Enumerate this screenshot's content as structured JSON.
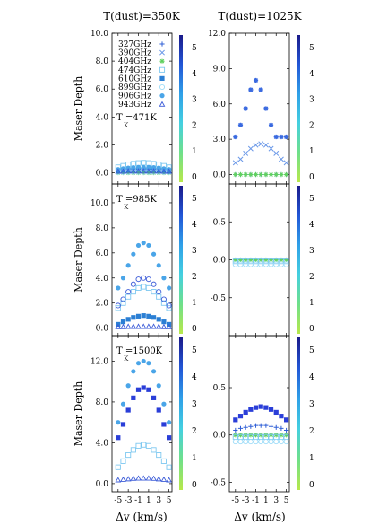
{
  "column_titles": [
    "T(dust)=350K",
    "T(dust)=1025K"
  ],
  "y_label": "Maser Depth",
  "x_label": "Δv (km/s)",
  "x_ticks": [
    -5,
    -3,
    -1,
    1,
    3,
    5
  ],
  "legend": {
    "entries": [
      {
        "label": "327GHz",
        "marker": "plus",
        "color": "#2f5fd6"
      },
      {
        "label": "390GHz",
        "marker": "x",
        "color": "#6a98e8"
      },
      {
        "label": "404GHz",
        "marker": "star",
        "color": "#5fd05f"
      },
      {
        "label": "474GHz",
        "marker": "square-open",
        "color": "#7ec8f0"
      },
      {
        "label": "610GHz",
        "marker": "square-filled",
        "color": "#2b7fd4"
      },
      {
        "label": "899GHz",
        "marker": "circle-open",
        "color": "#9edcf8"
      },
      {
        "label": "906GHz",
        "marker": "circle-filled",
        "color": "#4aa5e8"
      },
      {
        "label": "943GHz",
        "marker": "triangle-open",
        "color": "#3c5cd8"
      }
    ]
  },
  "colorbar": {
    "ticks": [
      0,
      1,
      2,
      3,
      4,
      5
    ],
    "gradient": [
      "#1a1a8a",
      "#2256d6",
      "#2fa0e8",
      "#44d0e0",
      "#6fe08a",
      "#b8e84a"
    ]
  },
  "chart_data": [
    {
      "type": "scatter",
      "column": 0,
      "row": 0,
      "annotation": "T  =471K",
      "annotation_sub": "K",
      "ylim": [
        -0.8,
        10
      ],
      "y_ticks": [
        "0.0",
        "2.0",
        "4.0",
        "6.0",
        "8.0",
        "10.0"
      ],
      "y_tick_values": [
        0,
        2,
        4,
        6,
        8,
        10
      ],
      "x": [
        -5,
        -4,
        -3,
        -2,
        -1,
        0,
        1,
        2,
        3,
        4,
        5
      ],
      "series": [
        {
          "name": "327GHz",
          "marker": "plus",
          "color": "#2f5fd6",
          "values": [
            0.05,
            0.06,
            0.07,
            0.08,
            0.08,
            0.08,
            0.08,
            0.08,
            0.07,
            0.06,
            0.05
          ]
        },
        {
          "name": "390GHz",
          "marker": "x",
          "color": "#6a98e8",
          "values": [
            0.1,
            0.12,
            0.14,
            0.15,
            0.16,
            0.16,
            0.16,
            0.15,
            0.14,
            0.12,
            0.1
          ]
        },
        {
          "name": "404GHz",
          "marker": "star",
          "color": "#5fd05f",
          "values": [
            0.0,
            0.0,
            0.0,
            0.0,
            0.0,
            0.0,
            0.0,
            0.0,
            0.0,
            0.0,
            0.0
          ]
        },
        {
          "name": "474GHz",
          "marker": "square-open",
          "color": "#7ec8f0",
          "values": [
            0.4,
            0.5,
            0.6,
            0.65,
            0.7,
            0.72,
            0.7,
            0.65,
            0.6,
            0.5,
            0.4
          ]
        },
        {
          "name": "610GHz",
          "marker": "square-filled",
          "color": "#2b7fd4",
          "values": [
            0.15,
            0.18,
            0.2,
            0.22,
            0.23,
            0.23,
            0.23,
            0.22,
            0.2,
            0.18,
            0.15
          ]
        },
        {
          "name": "899GHz",
          "marker": "circle-open",
          "color": "#9edcf8",
          "values": [
            0.05,
            0.05,
            0.06,
            0.06,
            0.06,
            0.06,
            0.06,
            0.06,
            0.06,
            0.05,
            0.05
          ]
        },
        {
          "name": "906GHz",
          "marker": "circle-filled",
          "color": "#4aa5e8",
          "values": [
            0.25,
            0.3,
            0.35,
            0.38,
            0.4,
            0.4,
            0.4,
            0.38,
            0.35,
            0.3,
            0.25
          ]
        },
        {
          "name": "943GHz",
          "marker": "triangle-open",
          "color": "#3c5cd8",
          "values": [
            0.1,
            0.1,
            0.12,
            0.12,
            0.12,
            0.12,
            0.12,
            0.12,
            0.12,
            0.1,
            0.1
          ]
        }
      ]
    },
    {
      "type": "scatter",
      "column": 1,
      "row": 0,
      "annotation": "",
      "annotation_sub": "",
      "ylim": [
        -0.8,
        12
      ],
      "y_ticks": [
        "0.0",
        "3.0",
        "6.0",
        "9.0",
        "12.0"
      ],
      "y_tick_values": [
        0,
        3,
        6,
        9,
        12
      ],
      "x": [
        -5,
        -4,
        -3,
        -2,
        -1,
        0,
        1,
        2,
        3,
        4,
        5
      ],
      "series": [
        {
          "name": "327GHz",
          "marker": "plus",
          "color": "#2f5fd6",
          "values": [
            0.0,
            0.0,
            0.0,
            0.0,
            0.0,
            0.0,
            0.0,
            0.0,
            0.0,
            0.0,
            0.0
          ]
        },
        {
          "name": "390GHz",
          "marker": "x",
          "color": "#6a98e8",
          "values": [
            1.0,
            1.3,
            1.8,
            2.2,
            2.5,
            2.6,
            2.5,
            2.2,
            1.8,
            1.3,
            1.0
          ]
        },
        {
          "name": "404GHz",
          "marker": "star",
          "color": "#5fd05f",
          "values": [
            0.0,
            0.0,
            0.0,
            0.0,
            0.0,
            0.0,
            0.0,
            0.0,
            0.0,
            0.0,
            0.0
          ]
        },
        {
          "name": "906GHz",
          "marker": "star-filled",
          "color": "#3a6ae0",
          "values": [
            3.2,
            4.2,
            5.6,
            7.2,
            8.0,
            7.2,
            5.6,
            4.2,
            3.2,
            3.2,
            3.2
          ]
        }
      ]
    },
    {
      "type": "scatter",
      "column": 0,
      "row": 1,
      "annotation": "T  =985K",
      "annotation_sub": "K",
      "ylim": [
        -0.6,
        11.5
      ],
      "y_ticks": [
        "0.0",
        "2.0",
        "4.0",
        "6.0",
        "8.0",
        "10.0"
      ],
      "y_tick_values": [
        0,
        2,
        4,
        6,
        8,
        10
      ],
      "x": [
        -5,
        -4,
        -3,
        -2,
        -1,
        0,
        1,
        2,
        3,
        4,
        5
      ],
      "series": [
        {
          "name": "474GHz",
          "marker": "square-open",
          "color": "#7ec8f0",
          "values": [
            1.6,
            2.0,
            2.5,
            2.9,
            3.2,
            3.3,
            3.2,
            2.9,
            2.5,
            2.0,
            1.6
          ]
        },
        {
          "name": "610GHz",
          "marker": "square-filled",
          "color": "#2b7fd4",
          "values": [
            0.3,
            0.5,
            0.7,
            0.85,
            0.95,
            1.0,
            0.95,
            0.85,
            0.7,
            0.5,
            0.3
          ]
        },
        {
          "name": "899GHz",
          "marker": "circle-open",
          "color": "#3c5cd8",
          "values": [
            1.8,
            2.3,
            2.9,
            3.5,
            3.9,
            4.0,
            3.9,
            3.5,
            2.9,
            2.3,
            1.8
          ]
        },
        {
          "name": "906GHz",
          "marker": "circle-filled",
          "color": "#4aa5e8",
          "values": [
            3.2,
            4.0,
            5.0,
            5.9,
            6.6,
            6.8,
            6.6,
            5.9,
            5.0,
            4.0,
            3.2
          ]
        },
        {
          "name": "943GHz",
          "marker": "triangle-open",
          "color": "#3c5cd8",
          "values": [
            0.1,
            0.1,
            0.12,
            0.12,
            0.12,
            0.12,
            0.12,
            0.12,
            0.12,
            0.1,
            0.1
          ]
        }
      ]
    },
    {
      "type": "scatter",
      "column": 1,
      "row": 1,
      "annotation": "",
      "annotation_sub": "",
      "ylim": [
        -1.0,
        1.0
      ],
      "y_ticks": [
        "-0.5",
        "0.0",
        "0.5"
      ],
      "y_tick_values": [
        -0.5,
        0,
        0.5
      ],
      "x": [
        -5,
        -4,
        -3,
        -2,
        -1,
        0,
        1,
        2,
        3,
        4,
        5
      ],
      "series": [
        {
          "name": "404GHz",
          "marker": "star",
          "color": "#5fd05f",
          "values": [
            0.0,
            0.0,
            0.0,
            0.0,
            0.0,
            0.0,
            0.0,
            0.0,
            0.0,
            0.0,
            0.0
          ]
        },
        {
          "name": "474GHz",
          "marker": "square-open",
          "color": "#7ec8f0",
          "values": [
            -0.02,
            -0.02,
            -0.02,
            -0.02,
            -0.02,
            -0.02,
            -0.02,
            -0.02,
            -0.02,
            -0.02,
            -0.02
          ]
        },
        {
          "name": "899GHz",
          "marker": "circle-open",
          "color": "#9edcf8",
          "values": [
            -0.06,
            -0.06,
            -0.06,
            -0.06,
            -0.06,
            -0.06,
            -0.06,
            -0.06,
            -0.06,
            -0.06,
            -0.06
          ]
        }
      ]
    },
    {
      "type": "scatter",
      "column": 0,
      "row": 2,
      "annotation": "T  =1500K",
      "annotation_sub": "K",
      "ylim": [
        -0.8,
        14.5
      ],
      "y_ticks": [
        "0.0",
        "4.0",
        "8.0",
        "12.0"
      ],
      "y_tick_values": [
        0,
        4,
        8,
        12
      ],
      "x": [
        -5,
        -4,
        -3,
        -2,
        -1,
        0,
        1,
        2,
        3,
        4,
        5
      ],
      "series": [
        {
          "name": "474GHz",
          "marker": "square-open",
          "color": "#7ec8f0",
          "values": [
            1.6,
            2.2,
            2.8,
            3.3,
            3.7,
            3.8,
            3.7,
            3.3,
            2.8,
            2.2,
            1.6
          ]
        },
        {
          "name": "610GHz",
          "marker": "square-filled",
          "color": "#2a3ed8",
          "values": [
            4.5,
            5.8,
            7.2,
            8.4,
            9.2,
            9.4,
            9.2,
            8.4,
            7.2,
            5.8,
            4.5
          ]
        },
        {
          "name": "906GHz",
          "marker": "circle-filled",
          "color": "#4aa5e8",
          "values": [
            6.0,
            7.8,
            9.6,
            11.0,
            11.8,
            12.0,
            11.8,
            11.0,
            9.6,
            7.8,
            6.0
          ]
        },
        {
          "name": "943GHz",
          "marker": "triangle-open",
          "color": "#3c5cd8",
          "values": [
            0.35,
            0.4,
            0.45,
            0.5,
            0.52,
            0.52,
            0.52,
            0.5,
            0.45,
            0.4,
            0.35
          ]
        }
      ]
    },
    {
      "type": "scatter",
      "column": 1,
      "row": 2,
      "annotation": "",
      "annotation_sub": "",
      "ylim": [
        -0.6,
        1.05
      ],
      "y_ticks": [
        "-0.5",
        "0.0",
        "0.5"
      ],
      "y_tick_values": [
        -0.5,
        0,
        0.5
      ],
      "x": [
        -5,
        -4,
        -3,
        -2,
        -1,
        0,
        1,
        2,
        3,
        4,
        5
      ],
      "series": [
        {
          "name": "610GHz",
          "marker": "square-filled",
          "color": "#2a3ed8",
          "values": [
            0.16,
            0.2,
            0.24,
            0.27,
            0.29,
            0.3,
            0.29,
            0.27,
            0.24,
            0.2,
            0.16
          ]
        },
        {
          "name": "327GHz",
          "marker": "plus",
          "color": "#2f5fd6",
          "values": [
            0.05,
            0.07,
            0.08,
            0.09,
            0.1,
            0.1,
            0.1,
            0.09,
            0.08,
            0.07,
            0.05
          ]
        },
        {
          "name": "404GHz",
          "marker": "star",
          "color": "#5fd05f",
          "values": [
            0.0,
            0.0,
            0.0,
            0.0,
            0.0,
            0.0,
            0.0,
            0.0,
            0.0,
            0.0,
            0.0
          ]
        },
        {
          "name": "474GHz",
          "marker": "square-open",
          "color": "#7ec8f0",
          "values": [
            -0.02,
            -0.02,
            -0.02,
            -0.02,
            -0.02,
            -0.02,
            -0.02,
            -0.02,
            -0.02,
            -0.02,
            -0.02
          ]
        },
        {
          "name": "899GHz",
          "marker": "circle-open",
          "color": "#9edcf8",
          "values": [
            -0.07,
            -0.07,
            -0.07,
            -0.07,
            -0.07,
            -0.07,
            -0.07,
            -0.07,
            -0.07,
            -0.07,
            -0.07
          ]
        }
      ]
    }
  ]
}
